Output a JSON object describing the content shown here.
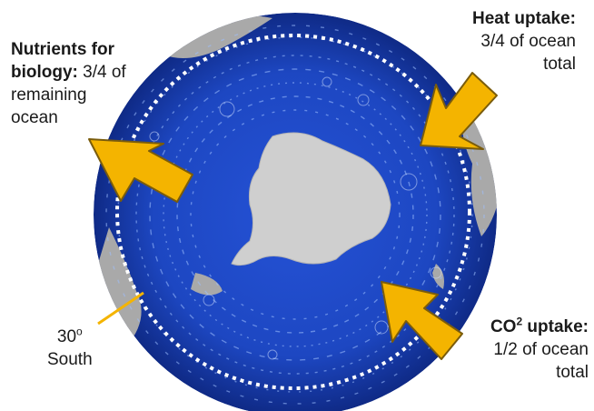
{
  "nutrients": {
    "bold": "Nutrients for",
    "bold2": "biology:",
    "rest2": " 3/4 of",
    "line3": "remaining",
    "line4": "ocean"
  },
  "heat": {
    "bold": "Heat uptake:",
    "line2": "3/4 of ocean",
    "line3": "total"
  },
  "co2": {
    "bold_a": "CO",
    "bold_sup": "2",
    "bold_b": " uptake:",
    "line2": "1/2 of ocean",
    "line3": "total"
  },
  "latitude": {
    "value": "30",
    "sup": "o",
    "line2": "South"
  },
  "colors": {
    "ocean": "#1c46c4",
    "land": "#a8a8a8",
    "antarctica": "#c8c8c8",
    "arrow_fill": "#f4b400",
    "arrow_stroke": "#8a6a10",
    "dotted_circle": "#ffffff"
  }
}
